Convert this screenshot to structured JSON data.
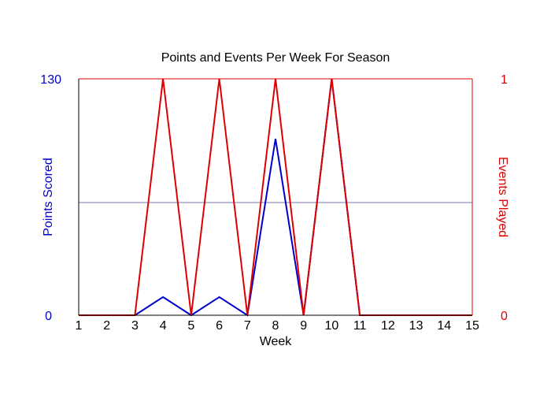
{
  "chart_data": {
    "type": "line",
    "title": "Points and Events Per Week For Season",
    "xlabel": "Week",
    "ylabel_left": "Points Scored",
    "ylabel_right": "Events Played",
    "x": [
      1,
      2,
      3,
      4,
      5,
      6,
      7,
      8,
      9,
      10,
      11,
      12,
      13,
      14,
      15
    ],
    "x_tick_labels": [
      "1",
      "2",
      "3",
      "4",
      "5",
      "6",
      "7",
      "8",
      "9",
      "10",
      "11",
      "12",
      "13",
      "14",
      "15"
    ],
    "ylim_left": [
      0,
      130
    ],
    "ylim_right": [
      0,
      1
    ],
    "y_left_tick_labels": [
      "0",
      "130"
    ],
    "y_right_tick_labels": [
      "0",
      "1"
    ],
    "grid": "single horizontal midline",
    "series": [
      {
        "axis": "left",
        "color": "#0000cc",
        "values": [
          0,
          0,
          0,
          10,
          0,
          10,
          0,
          97,
          0,
          130,
          0,
          0,
          0,
          0,
          0
        ]
      },
      {
        "axis": "right",
        "color": "#dd0000",
        "values": [
          0,
          0,
          0,
          1,
          0,
          1,
          0,
          1,
          0,
          1,
          0,
          0,
          0,
          0,
          0
        ]
      }
    ],
    "colors": {
      "left_axis": "#0000cc",
      "right_axis": "#dd0000",
      "midline": "#7777aa",
      "frame": "#000000"
    }
  }
}
